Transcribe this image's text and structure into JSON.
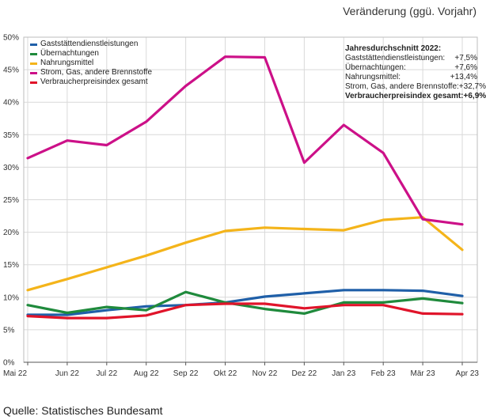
{
  "unit_label": "Veränderung (ggü. Vorjahr)",
  "source": "Quelle: Statistisches Bundesamt",
  "summary": {
    "title": "Jahresdurchschnitt 2022:",
    "rows": [
      {
        "label": "Gaststättendienstleistungen:",
        "value": "+7,5%",
        "bold": false
      },
      {
        "label": "Übernachtungen:",
        "value": "+7,6%",
        "bold": false
      },
      {
        "label": "Nahrungsmittel:",
        "value": "+13,4%",
        "bold": false
      },
      {
        "label": "Strom, Gas, andere Brennstoffe:",
        "value": "+32,7%",
        "bold": false
      },
      {
        "label": "Verbraucherpreisindex gesamt:",
        "value": "+6,9%",
        "bold": true
      }
    ]
  },
  "chart_data": {
    "type": "line",
    "title": "",
    "xlabel": "",
    "ylabel": "",
    "categories": [
      "Mai 22",
      "Jun 22",
      "Jul 22",
      "Aug 22",
      "Sep 22",
      "Okt 22",
      "Nov 22",
      "Dez 22",
      "Jan 23",
      "Feb 23",
      "Mär 23",
      "Apr 23"
    ],
    "ylim": [
      0,
      50
    ],
    "yticks": [
      0,
      5,
      10,
      15,
      20,
      25,
      30,
      35,
      40,
      45,
      50
    ],
    "ytick_labels": [
      "0%",
      "5%",
      "10%",
      "15%",
      "20%",
      "25%",
      "30%",
      "35%",
      "40%",
      "45%",
      "50%"
    ],
    "grid": true,
    "legend": "top-left",
    "series": [
      {
        "name": "Gaststättendienstleistungen",
        "color": "#1f5fa8",
        "values": [
          7.3,
          7.3,
          8.0,
          8.6,
          8.8,
          9.2,
          10.1,
          10.6,
          11.1,
          11.1,
          11.0,
          10.2
        ]
      },
      {
        "name": "Übernachtungen",
        "color": "#1f8a3c",
        "values": [
          8.8,
          7.6,
          8.5,
          8.0,
          10.8,
          9.2,
          8.2,
          7.5,
          9.2,
          9.2,
          9.8,
          9.1
        ]
      },
      {
        "name": "Nahrungsmittel",
        "color": "#f4b41a",
        "values": [
          11.1,
          12.8,
          14.6,
          16.4,
          18.4,
          20.2,
          20.7,
          20.5,
          20.3,
          21.9,
          22.3,
          17.3
        ]
      },
      {
        "name": "Strom, Gas, andere Brennstoffe",
        "color": "#cc1088",
        "values": [
          31.4,
          34.1,
          33.4,
          37.0,
          42.5,
          47.0,
          46.9,
          30.7,
          36.5,
          32.2,
          22.0,
          21.2
        ]
      },
      {
        "name": "Verbraucherpreisindex gesamt",
        "color": "#e0142a",
        "values": [
          7.1,
          6.8,
          6.8,
          7.2,
          8.8,
          9.0,
          9.0,
          8.3,
          8.8,
          8.8,
          7.5,
          7.4
        ]
      }
    ]
  }
}
